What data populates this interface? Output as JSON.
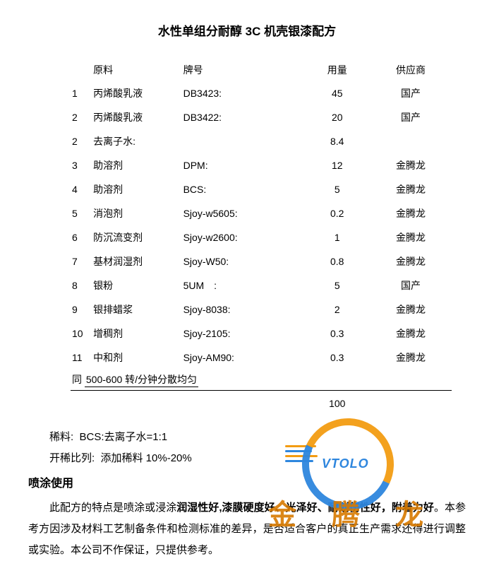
{
  "title": "水性单组分耐醇 3C 机壳银漆配方",
  "columns": {
    "material": "原料",
    "brand": "牌号",
    "amount": "用量",
    "supplier": "供应商"
  },
  "rows": [
    {
      "idx": "1",
      "material": "丙烯酸乳液",
      "brand": "DB3423:",
      "amount": "45",
      "supplier": "国产"
    },
    {
      "idx": "2",
      "material": "丙烯酸乳液",
      "brand": "DB3422:",
      "amount": "20",
      "supplier": "国产"
    },
    {
      "idx": "2",
      "material": "去离子水:",
      "brand": "",
      "amount": "8.4",
      "supplier": ""
    },
    {
      "idx": "3",
      "material": "助溶剂",
      "brand": "DPM:",
      "amount": "12",
      "supplier": "金腾龙"
    },
    {
      "idx": "4",
      "material": "助溶剂",
      "brand": "BCS:",
      "amount": "5",
      "supplier": "金腾龙"
    },
    {
      "idx": "5",
      "material": "消泡剂",
      "brand": "Sjoy-w5605:",
      "amount": "0.2",
      "supplier": "金腾龙"
    },
    {
      "idx": "6",
      "material": "防沉流变剂",
      "brand": "Sjoy-w2600:",
      "amount": "1",
      "supplier": "金腾龙"
    },
    {
      "idx": "7",
      "material": "基材润湿剂",
      "brand": "Sjoy-W50:",
      "amount": "0.8",
      "supplier": "金腾龙"
    },
    {
      "idx": "8",
      "material": "银粉",
      "brand": "5UM　:",
      "amount": "5",
      "supplier": "国产"
    },
    {
      "idx": "9",
      "material": "银排蜡浆",
      "brand": "Sjoy-8038:",
      "amount": "2",
      "supplier": "金腾龙"
    },
    {
      "idx": "10",
      "material": "增稠剂",
      "brand": "Sjoy-2105:",
      "amount": "0.3",
      "supplier": "金腾龙"
    },
    {
      "idx": "11",
      "material": "中和剂",
      "brand": "Sjoy-AM90:",
      "amount": "0.3",
      "supplier": "金腾龙"
    }
  ],
  "footer_note_prefix": "同 ",
  "footer_note_value": "500-600 转/分钟分散均匀",
  "total": "100",
  "dilute_label": "稀料:",
  "dilute_value": "BCS:去离子水=1:1",
  "ratio_label": "开稀比列:",
  "ratio_value": "添加稀料 10%-20%",
  "section_heading": "喷涂使用",
  "para_parts": {
    "p1": "此配方的特点是喷涂或浸涂",
    "b1": "润湿性好,漆膜硬度好、光泽好、耐划伤性好，附着力好",
    "p2": "。本参考方因涉及材料工艺制备条件和检测标准的差异，是否适合客户的真正生产需求还得进行调整或实验。本公司不作保证，只提供参考。"
  },
  "watermark": {
    "brand_en": "VTOLO",
    "brand_cn": "金 腾 龙"
  },
  "colors": {
    "text": "#000000",
    "wm_orange": "#f39c12",
    "wm_blue": "#2e86de",
    "wm_cn": "#d87a00"
  }
}
